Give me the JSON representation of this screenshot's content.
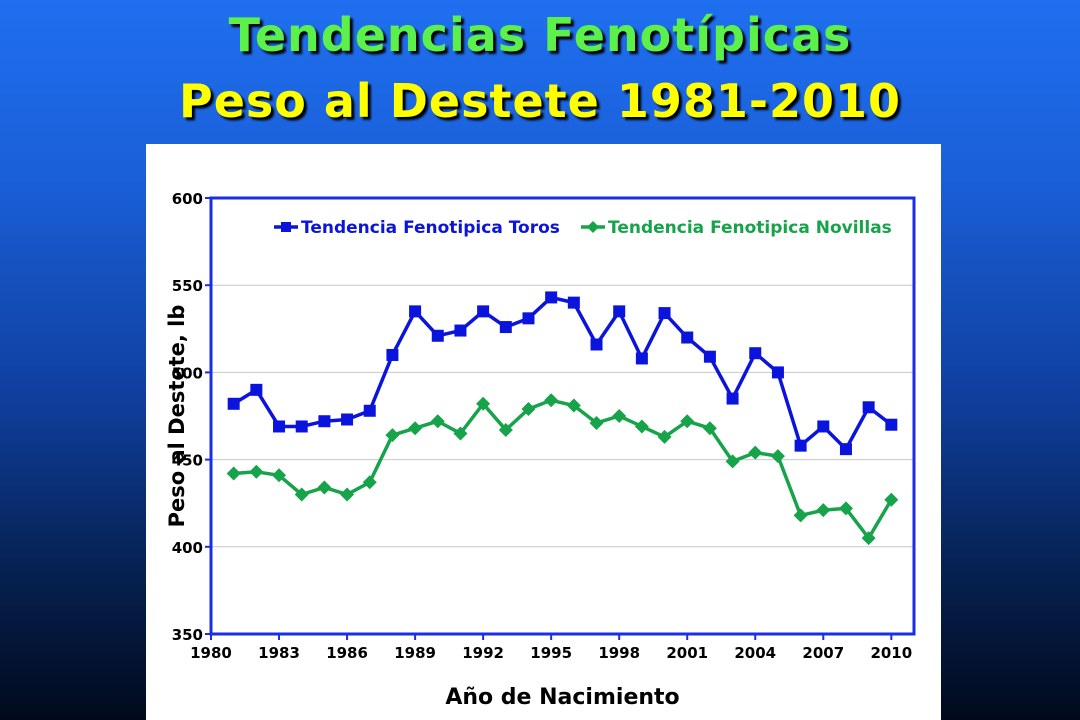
{
  "title": {
    "line1": "Tendencias Fenotípicas",
    "line2": "Peso al Destete 1981-2010",
    "line1_color": "#5cf04a",
    "line2_color": "#ffff00"
  },
  "chart_data": {
    "type": "line",
    "xlabel": "Año de Nacimiento",
    "ylabel": "Peso al Destete, lb",
    "xlim": [
      1980,
      2011
    ],
    "ylim": [
      350,
      600
    ],
    "xticks": [
      1980,
      1983,
      1986,
      1989,
      1992,
      1995,
      1998,
      2001,
      2004,
      2007,
      2010
    ],
    "yticks": [
      350,
      400,
      450,
      500,
      550,
      600
    ],
    "grid": true,
    "legend_position": "top",
    "x": [
      1981,
      1982,
      1983,
      1984,
      1985,
      1986,
      1987,
      1988,
      1989,
      1990,
      1991,
      1992,
      1993,
      1994,
      1995,
      1996,
      1997,
      1998,
      1999,
      2000,
      2001,
      2002,
      2003,
      2004,
      2005,
      2006,
      2007,
      2008,
      2009,
      2010
    ],
    "series": [
      {
        "name": "Tendencia Fenotipica Toros",
        "color": "#0a14dc",
        "marker": "square",
        "values": [
          482,
          490,
          469,
          469,
          472,
          473,
          478,
          510,
          535,
          521,
          524,
          535,
          526,
          531,
          543,
          540,
          516,
          535,
          508,
          534,
          520,
          509,
          485,
          511,
          500,
          458,
          469,
          456,
          480,
          470
        ]
      },
      {
        "name": "Tendencia Fenotipica Novillas",
        "color": "#16a34a",
        "marker": "diamond",
        "values": [
          442,
          443,
          441,
          430,
          434,
          430,
          437,
          464,
          468,
          472,
          465,
          482,
          467,
          479,
          484,
          481,
          471,
          475,
          469,
          463,
          472,
          468,
          449,
          454,
          452,
          418,
          421,
          422,
          405,
          427
        ]
      }
    ],
    "frame_color": "#1a2ee6"
  }
}
